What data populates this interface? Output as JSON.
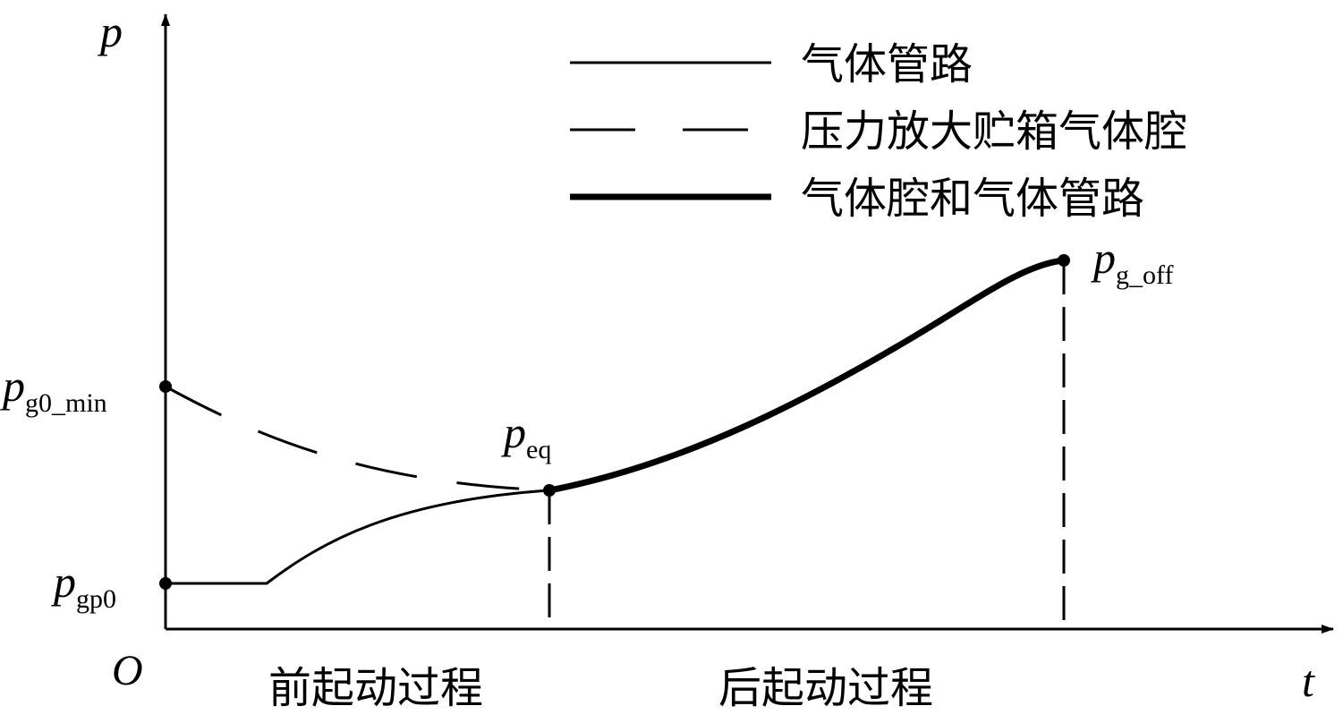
{
  "axes": {
    "y_label": "p",
    "x_label": "t",
    "origin_label": "O"
  },
  "legend": [
    {
      "label": "气体管路",
      "style": "solid-thin"
    },
    {
      "label": "压力放大贮箱气体腔",
      "style": "dashed"
    },
    {
      "label": "气体腔和气体管路",
      "style": "solid-thick"
    }
  ],
  "points": {
    "g0_min": {
      "symbol": "p",
      "subscript": "g0_min"
    },
    "gp0": {
      "symbol": "p",
      "subscript": "gp0"
    },
    "eq": {
      "symbol": "p",
      "subscript": "eq"
    },
    "g_off": {
      "symbol": "p",
      "subscript": "g_off"
    }
  },
  "phases": {
    "first": "前起动过程",
    "second": "后起动过程"
  },
  "colors": {
    "line": "#000000",
    "background": "#ffffff"
  }
}
